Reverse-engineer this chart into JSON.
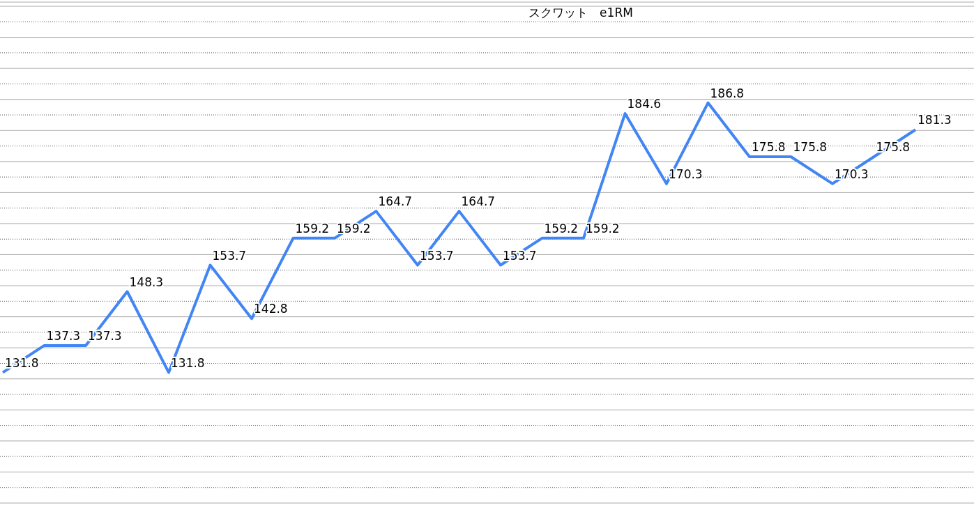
{
  "chart_data": {
    "type": "line",
    "title": "スクワット　e1RM",
    "categories": [
      null,
      null,
      null,
      null,
      null,
      null,
      null,
      null,
      null,
      null,
      null,
      null,
      null,
      null,
      null,
      null,
      null,
      null,
      null,
      null,
      null,
      null,
      null
    ],
    "series": [
      {
        "color": "#4285f4",
        "values": [
          131.8,
          137.3,
          137.3,
          148.3,
          131.8,
          153.7,
          142.8,
          159.2,
          159.2,
          164.7,
          153.7,
          164.7,
          153.7,
          159.2,
          159.2,
          184.6,
          170.3,
          186.8,
          175.8,
          175.8,
          170.3,
          175.8,
          181.3
        ]
      }
    ],
    "data_labels": true,
    "grid": "y",
    "marker": "none",
    "line_style": "solid"
  }
}
